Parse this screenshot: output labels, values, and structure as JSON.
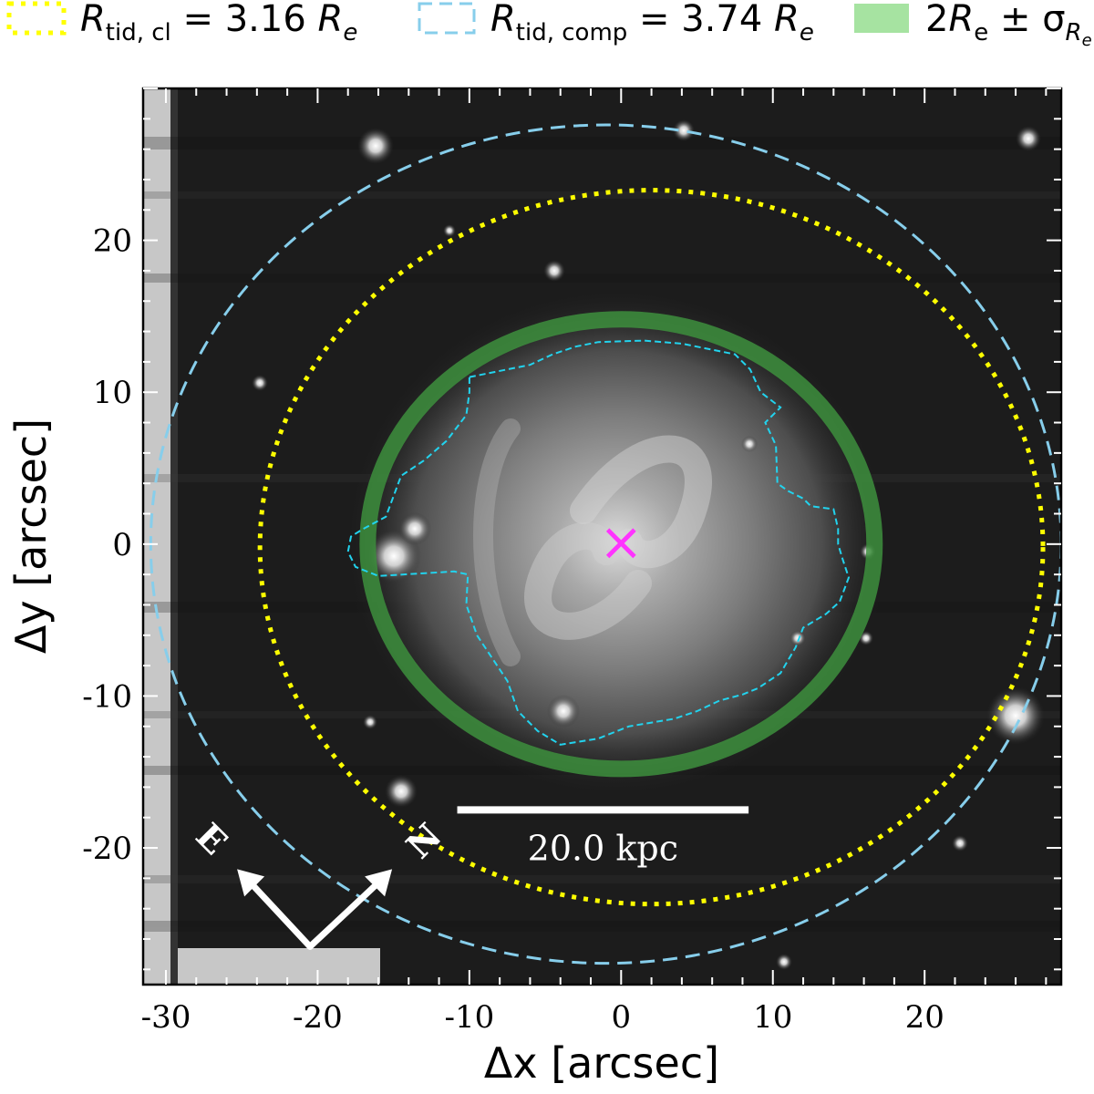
{
  "chart_data": {
    "type": "image",
    "xlabel": "Δx [arcsec]",
    "ylabel": "Δy [arcsec]",
    "xlim": [
      -31.5,
      29
    ],
    "ylim": [
      -29,
      30
    ],
    "xticks": [
      -30,
      -20,
      -10,
      0,
      10,
      20
    ],
    "yticks": [
      -20,
      -10,
      0,
      10,
      20
    ],
    "legend": {
      "placement": "top",
      "entries": [
        {
          "style": "dotted",
          "color": "#ffff00",
          "symbol": "R",
          "subscript": "tid, cl",
          "value": " = 3.16 ",
          "unit": "R",
          "unit_sub": "e"
        },
        {
          "style": "dashed",
          "color": "#87ceeb",
          "symbol": "R",
          "subscript": "tid, comp",
          "value": " = 3.74 ",
          "unit": "R",
          "unit_sub": "e"
        },
        {
          "style": "filled",
          "color": "#a6e3a1",
          "prefix": "2",
          "symbol": "R",
          "subscript": "e",
          "value": " ± σ",
          "unit_sub": "R",
          "unit_sub2": "e"
        }
      ]
    },
    "ellipses": [
      {
        "name": "tidal-cluster",
        "color": "#ffff00",
        "style": "dotted",
        "center": [
          2.0,
          -0.2
        ],
        "rx": 25.8,
        "ry": 23.5
      },
      {
        "name": "tidal-companion",
        "color": "#87ceeb",
        "style": "dashed",
        "center": [
          -1.0,
          0.0
        ],
        "rx": 30.0,
        "ry": 27.6
      },
      {
        "name": "two-re-band",
        "color": "#3d8f3d",
        "style": "filled",
        "center": [
          0.0,
          0.0
        ],
        "rx": 16.7,
        "ry": 14.8
      }
    ],
    "contour": {
      "color": "#22d3ee",
      "points": [
        [
          -10,
          11
        ],
        [
          -6,
          11.8
        ],
        [
          -4.5,
          12.5
        ],
        [
          -3,
          13
        ],
        [
          -1.5,
          13.3
        ],
        [
          1.5,
          13.4
        ],
        [
          4,
          13.2
        ],
        [
          6,
          12.8
        ],
        [
          7.5,
          12.5
        ],
        [
          8.5,
          11.5
        ],
        [
          9.2,
          10
        ],
        [
          10.5,
          9
        ],
        [
          9.5,
          8
        ],
        [
          10.2,
          6.5
        ],
        [
          10.3,
          4
        ],
        [
          11,
          3.5
        ],
        [
          12,
          3
        ],
        [
          12.5,
          2.5
        ],
        [
          14,
          2.3
        ],
        [
          14.3,
          1
        ],
        [
          14.3,
          0
        ],
        [
          14.6,
          -1
        ],
        [
          15,
          -2.2
        ],
        [
          14.4,
          -3.8
        ],
        [
          13.5,
          -4.6
        ],
        [
          12,
          -5.5
        ],
        [
          11.5,
          -6.8
        ],
        [
          10.5,
          -8.5
        ],
        [
          9,
          -9.5
        ],
        [
          8,
          -9.9
        ],
        [
          6.5,
          -10.3
        ],
        [
          5,
          -11
        ],
        [
          3.5,
          -11.5
        ],
        [
          0.5,
          -12
        ],
        [
          -1.5,
          -12.8
        ],
        [
          -4,
          -13.2
        ],
        [
          -5.5,
          -12.3
        ],
        [
          -6.8,
          -11
        ],
        [
          -7.5,
          -9
        ],
        [
          -8.5,
          -7.5
        ],
        [
          -9.5,
          -6
        ],
        [
          -10.2,
          -4
        ],
        [
          -10.1,
          -2
        ],
        [
          -11,
          -1.8
        ],
        [
          -16,
          -2.1
        ],
        [
          -17.5,
          -1.5
        ],
        [
          -18,
          -0.5
        ],
        [
          -17.8,
          0.5
        ],
        [
          -17,
          1
        ],
        [
          -15.5,
          1.8
        ],
        [
          -14.5,
          4.5
        ],
        [
          -13,
          5.5
        ],
        [
          -11.5,
          6.8
        ],
        [
          -10.2,
          8.5
        ],
        [
          -10,
          10
        ]
      ]
    },
    "center_marker": {
      "x": 0,
      "y": 0,
      "symbol": "×",
      "color": "#ff33ff"
    },
    "scale_bar": {
      "label": "20.0 kpc",
      "x_start": -10.8,
      "x_end": 8.4,
      "y": -17.5
    },
    "compass": {
      "east_label": "E",
      "north_label": "N",
      "origin": [
        -20.5,
        -26.5
      ]
    },
    "image": {
      "colormap": "gray",
      "background": "#1c1c1c",
      "masked_color": "#c7c7c7"
    }
  }
}
